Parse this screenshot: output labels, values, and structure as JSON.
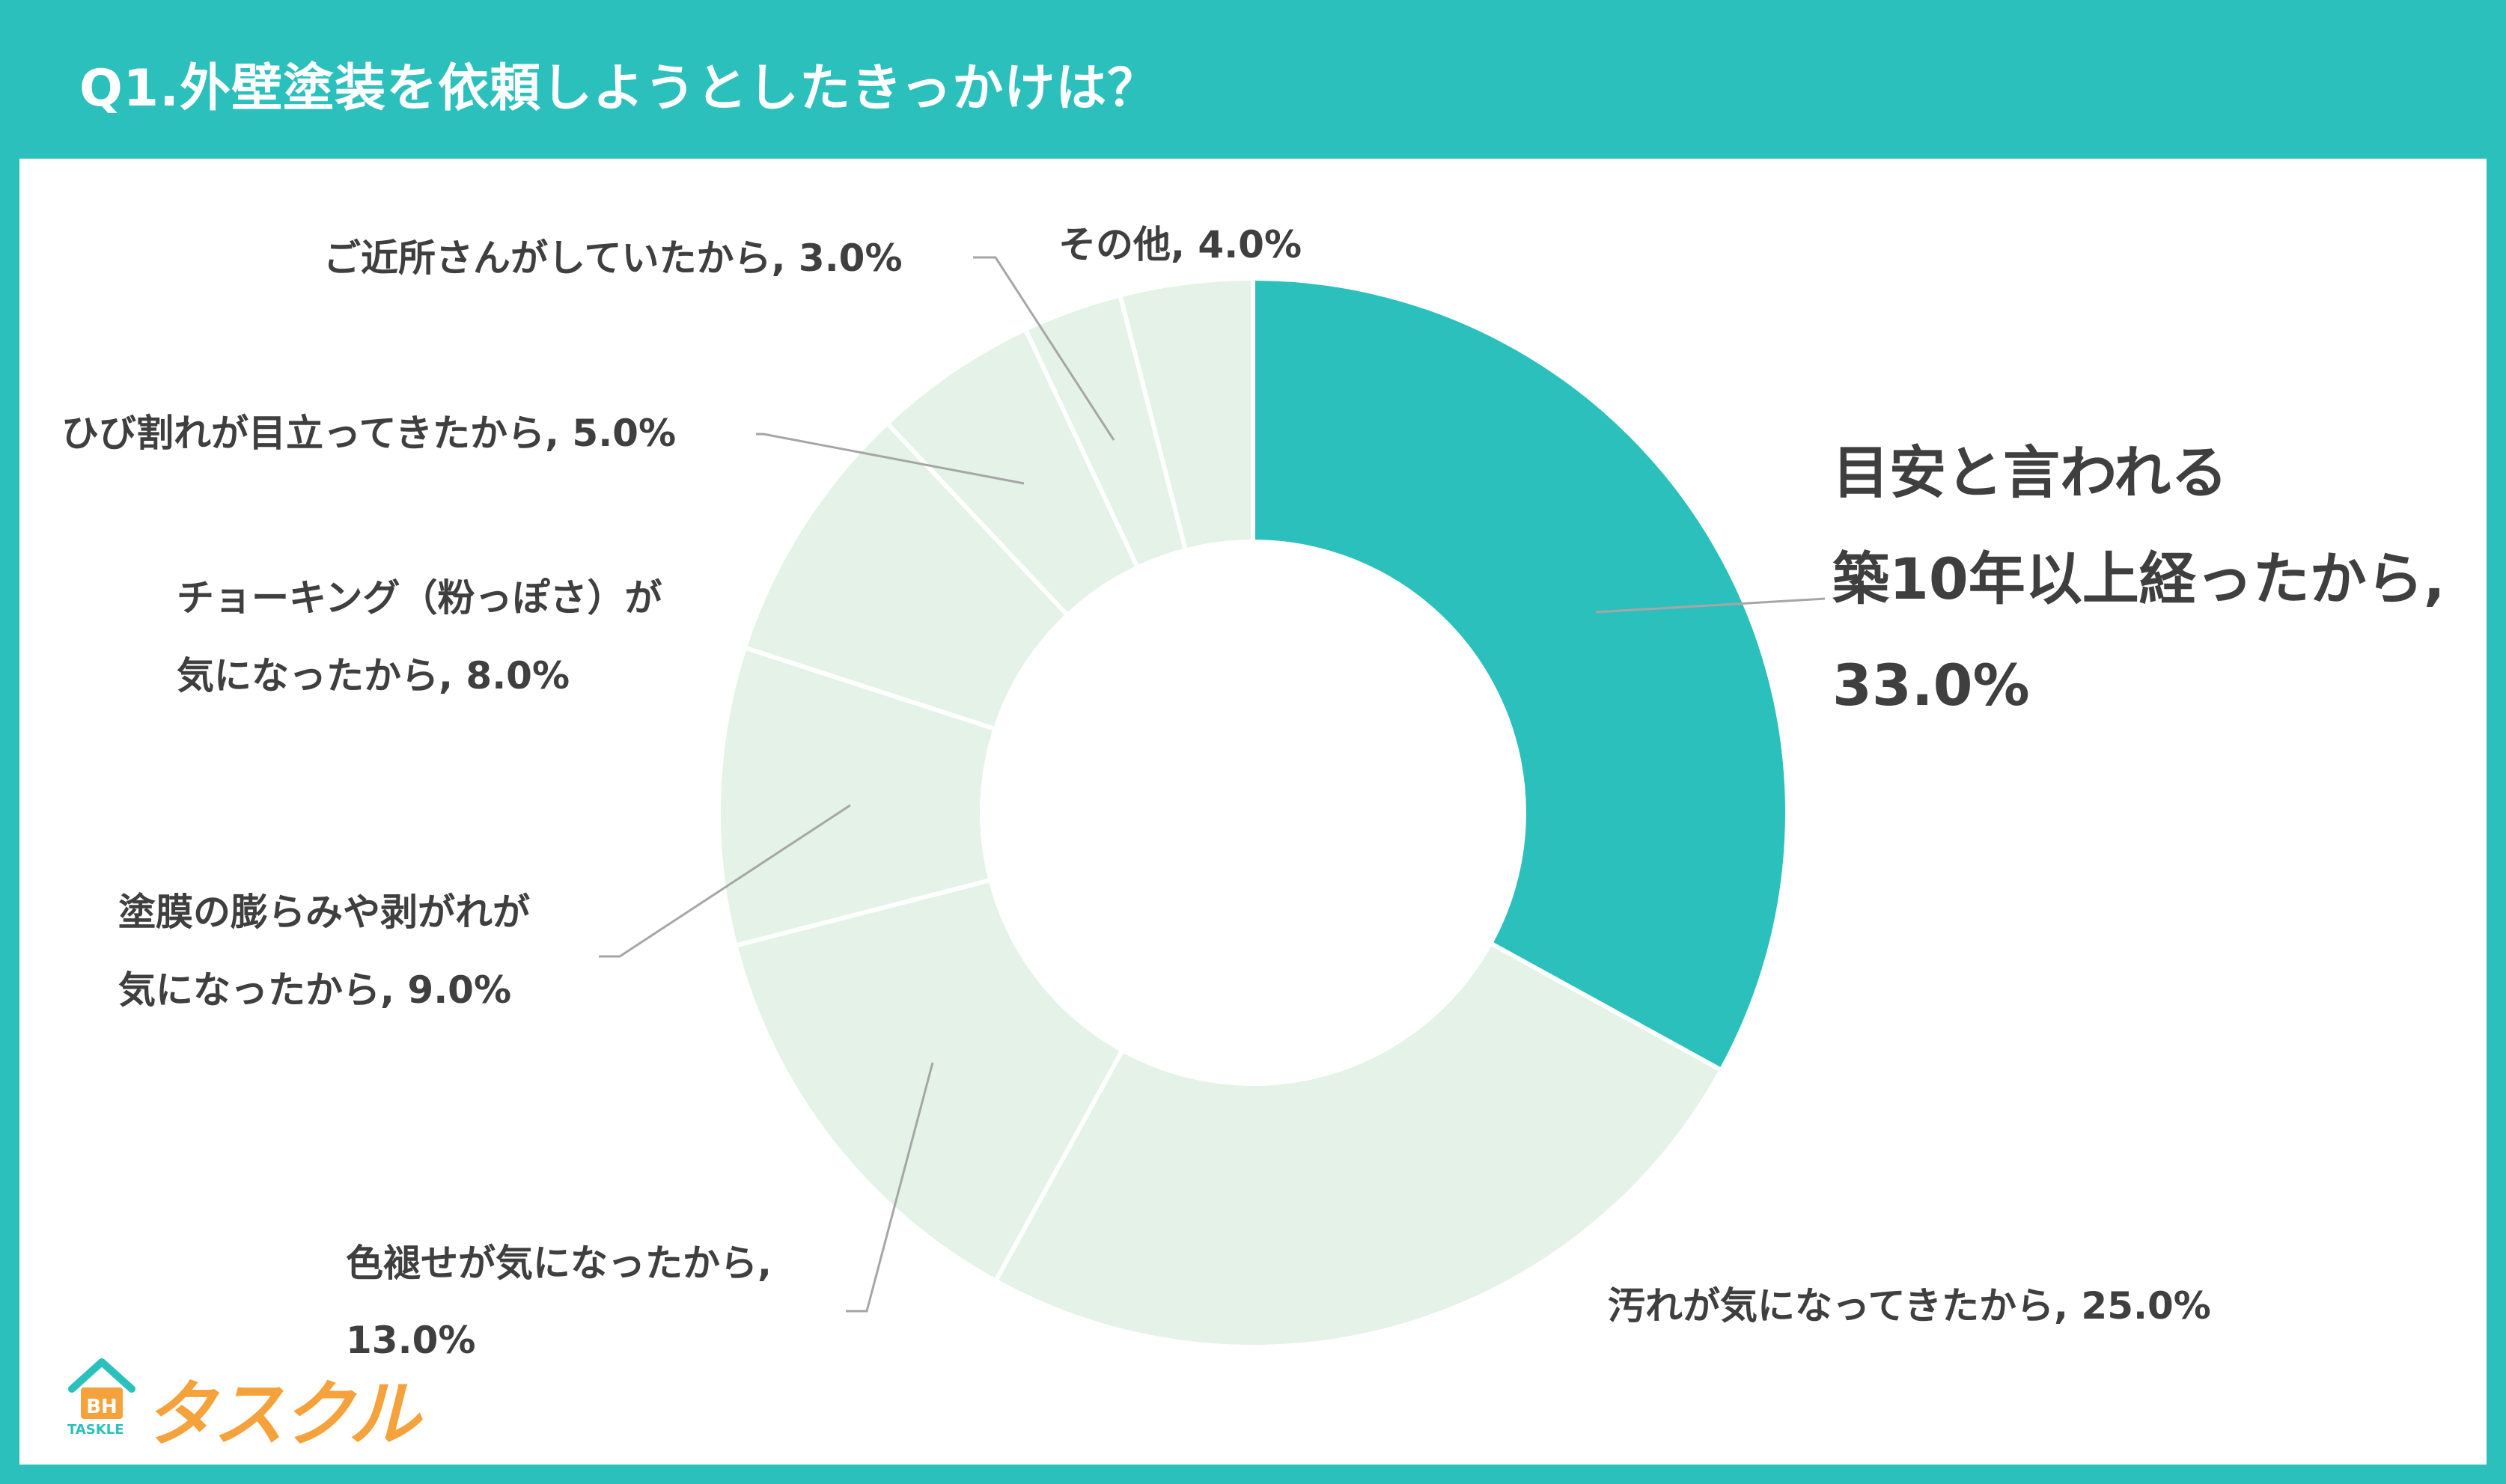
{
  "header": {
    "title": "Q1.外壁塗装を依頼しようとしたきっかけは？"
  },
  "chart_data": {
    "type": "pie",
    "donut": true,
    "title": "Q1.外壁塗装を依頼しようとしたきっかけは？",
    "slices": [
      {
        "label_lines": [
          "目安と言われる",
          "築10年以上経ったから,",
          "33.0%"
        ],
        "value": 33.0,
        "color": "#2cc0bd"
      },
      {
        "label_lines": [
          "汚れが気になってきたから, 25.0%"
        ],
        "value": 25.0,
        "color": "#e4f2e8"
      },
      {
        "label_lines": [
          "色褪せが気になったから,",
          "13.0%"
        ],
        "value": 13.0,
        "color": "#e4f2e8"
      },
      {
        "label_lines": [
          "塗膜の膨らみや剥がれが",
          "気になったから, 9.0%"
        ],
        "value": 9.0,
        "color": "#e4f2e8"
      },
      {
        "label_lines": [
          "チョーキング（粉っぽさ）が",
          "気になったから, 8.0%"
        ],
        "value": 8.0,
        "color": "#e4f2e8"
      },
      {
        "label_lines": [
          "ひび割れが目立ってきたから, 5.0%"
        ],
        "value": 5.0,
        "color": "#e4f2e8"
      },
      {
        "label_lines": [
          "ご近所さんがしていたから, 3.0%"
        ],
        "value": 3.0,
        "color": "#e4f2e8"
      },
      {
        "label_lines": [
          "その他, 4.0%"
        ],
        "value": 4.0,
        "color": "#e4f2e8"
      }
    ],
    "highlight_color": "#2cc0bd",
    "other_color": "#e4f2e8",
    "leader_color": "#a6a6a6"
  },
  "logo": {
    "word": "タスクル",
    "sub": "TASKLE",
    "mark_text": "BH"
  }
}
